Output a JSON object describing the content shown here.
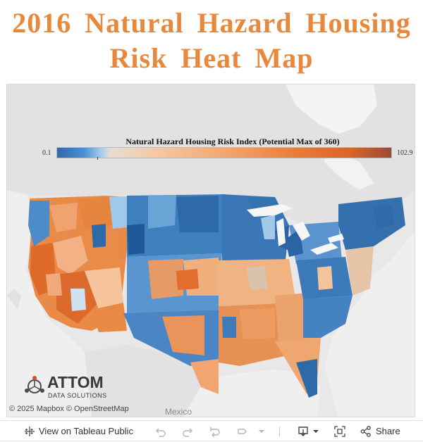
{
  "title": {
    "line1": "2016 Natural Hazard Housing",
    "line2": "Risk Heat Map"
  },
  "legend": {
    "title": "Natural Hazard Housing Risk Index (Potential Max of 360)",
    "min": "0.1",
    "max": "102.9",
    "colors": {
      "low": "#2f6aa8",
      "mid": "#e6ddd3",
      "high": "#d7642a",
      "max": "#9b4b35"
    }
  },
  "map": {
    "attribution": "© 2025 Mapbox © OpenStreetMap",
    "country_label": "Mexico"
  },
  "logo": {
    "name": "ATTOM",
    "subtitle": "DATA SOLUTIONS"
  },
  "toolbar": {
    "view_label": "View on Tableau Public",
    "share_label": "Share"
  }
}
